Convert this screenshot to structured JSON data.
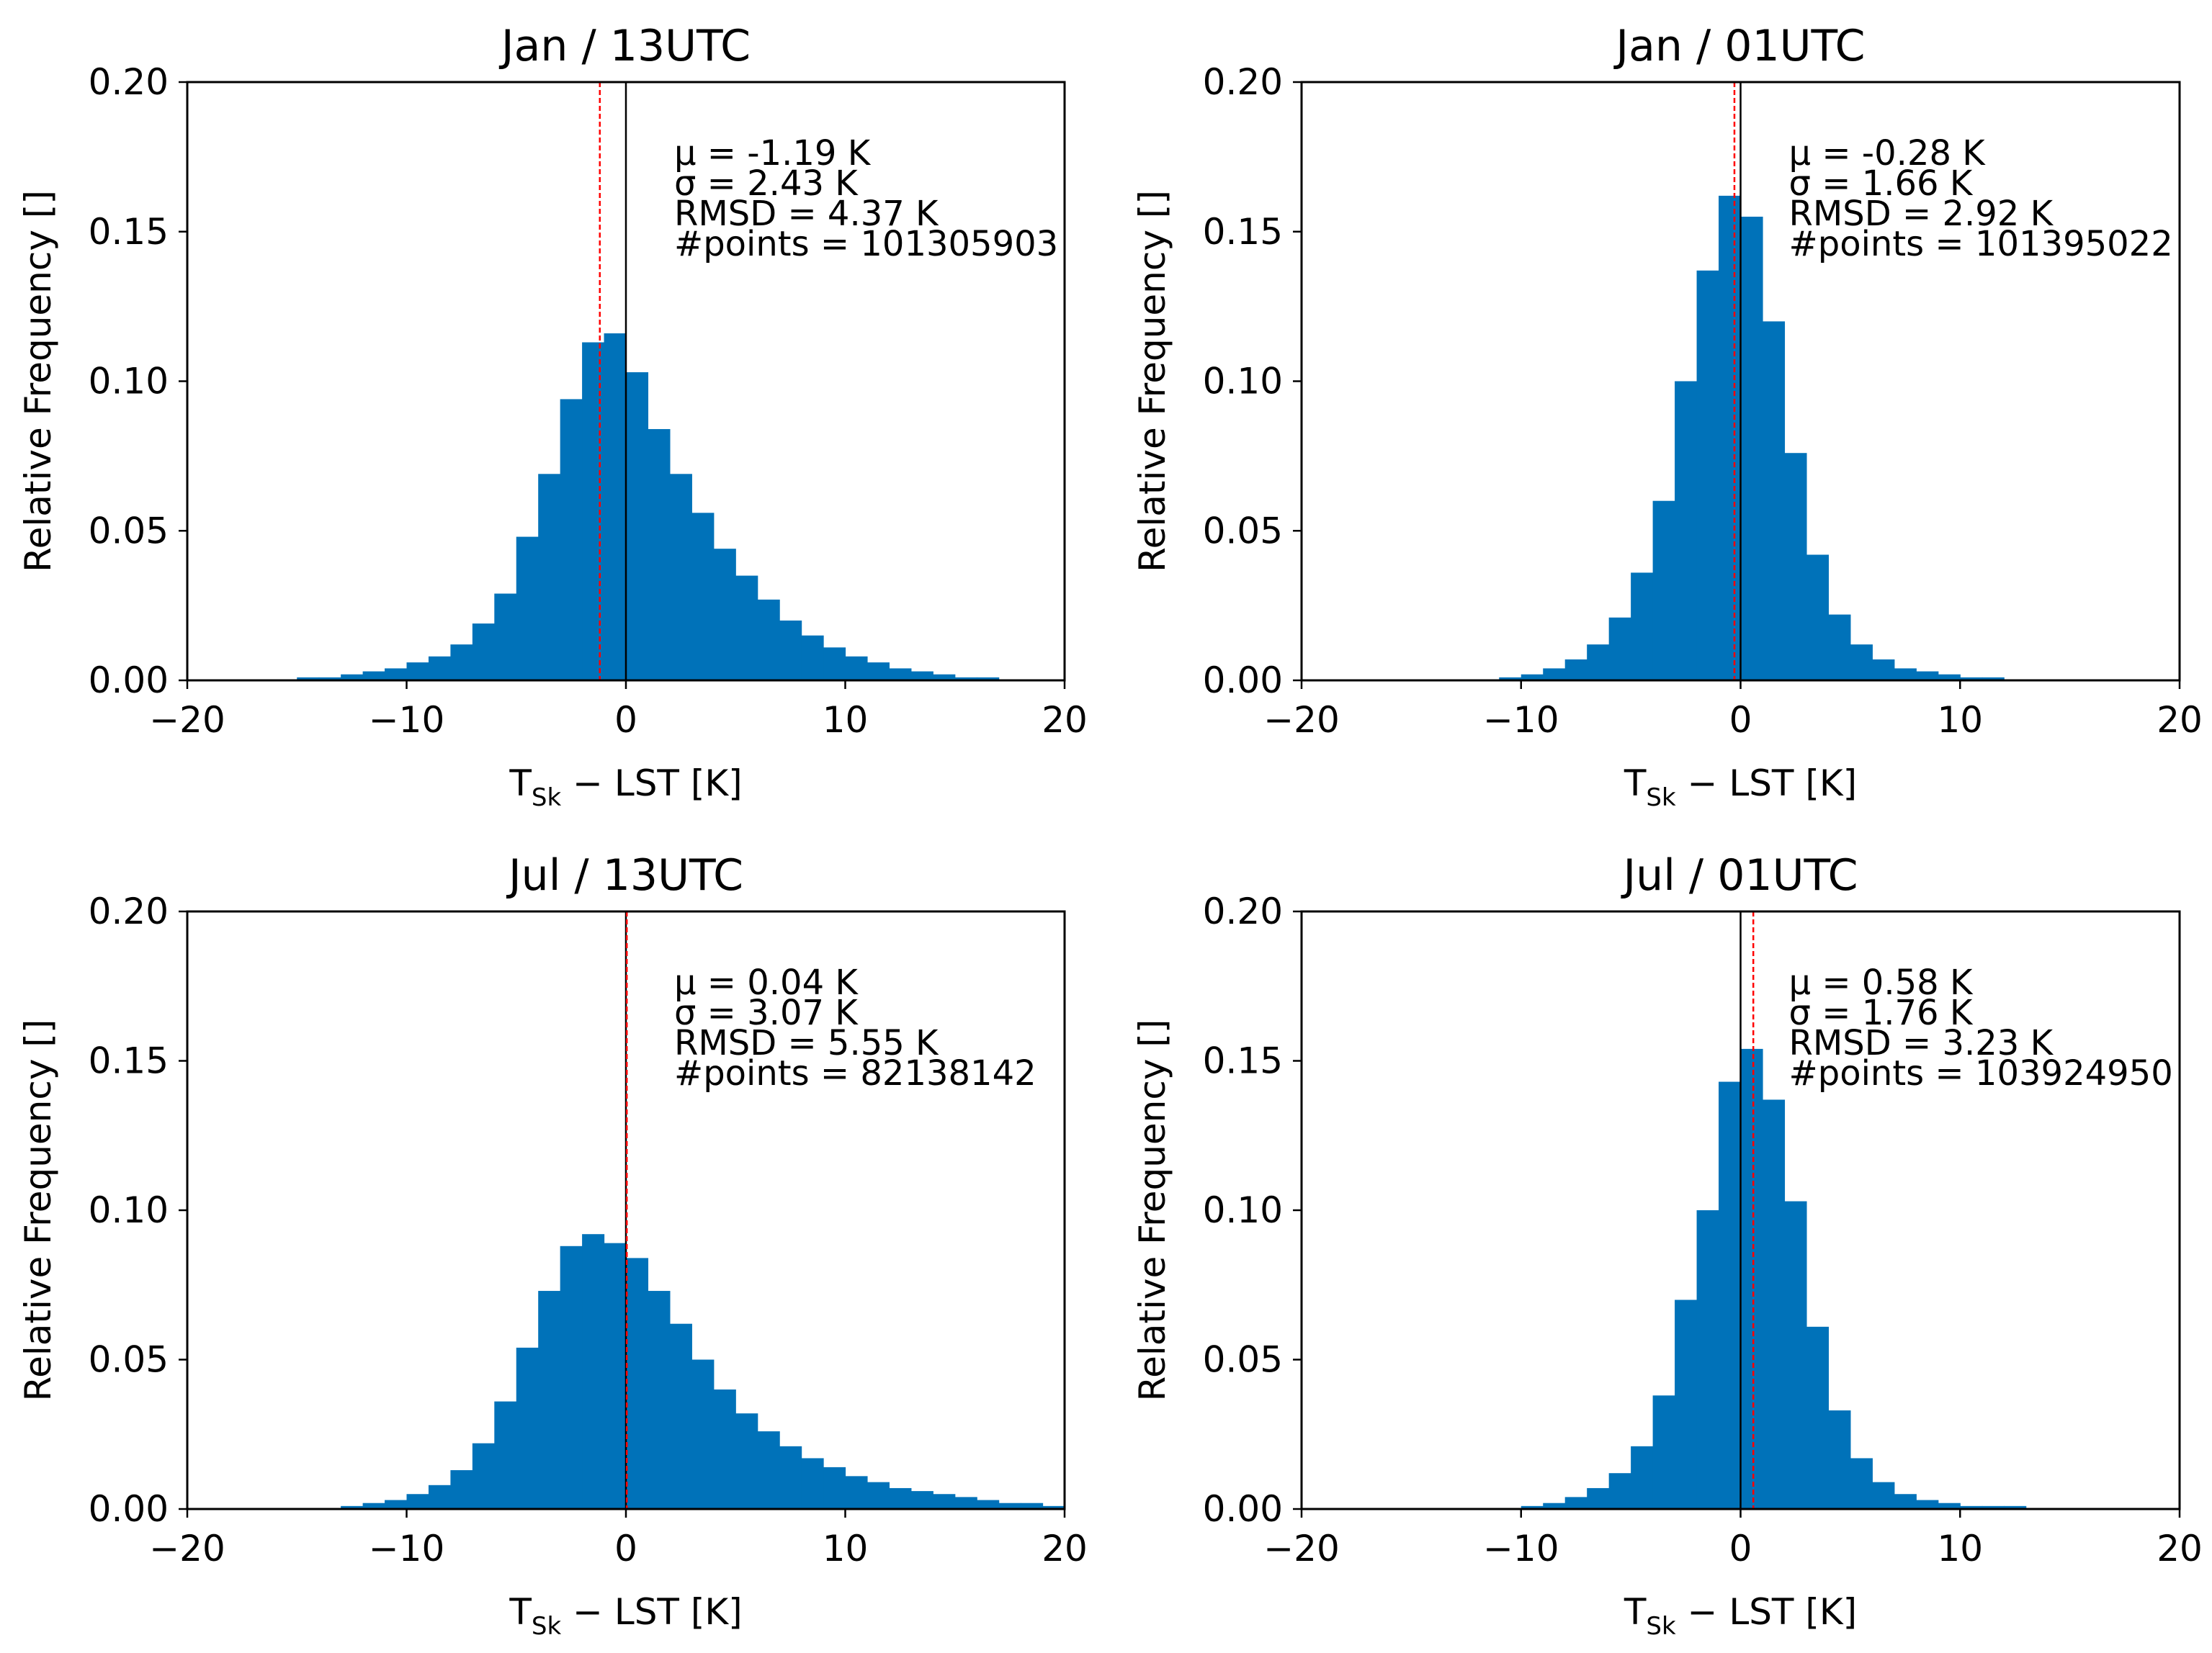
{
  "figure": {
    "xlabel_main": "T",
    "xlabel_sub": "Sk",
    "xlabel_rest": " − LST [K]",
    "ylabel": "Relative Frequency []"
  },
  "chart_data": [
    {
      "type": "bar",
      "title": "Jan / 13UTC",
      "xlim": [
        -20,
        20
      ],
      "ylim": [
        0,
        0.2
      ],
      "xticks": [
        "−20",
        "−10",
        "0",
        "10",
        "20"
      ],
      "yticks": [
        "0.00",
        "0.05",
        "0.10",
        "0.15",
        "0.20"
      ],
      "bin_start": -20,
      "bin_width": 1,
      "values": [
        0,
        0,
        0,
        0,
        0,
        0.001,
        0.001,
        0.002,
        0.003,
        0.004,
        0.006,
        0.008,
        0.012,
        0.019,
        0.029,
        0.048,
        0.069,
        0.094,
        0.113,
        0.116,
        0.103,
        0.084,
        0.069,
        0.056,
        0.044,
        0.035,
        0.027,
        0.02,
        0.015,
        0.011,
        0.008,
        0.006,
        0.004,
        0.003,
        0.002,
        0.001,
        0.001,
        0,
        0,
        0
      ],
      "mean": -1.19,
      "stats": [
        "μ =  -1.19 K",
        "σ = 2.43 K",
        "RMSD = 4.37 K",
        "#points = 101305903"
      ]
    },
    {
      "type": "bar",
      "title": "Jan / 01UTC",
      "xlim": [
        -20,
        20
      ],
      "ylim": [
        0,
        0.2
      ],
      "xticks": [
        "−20",
        "−10",
        "0",
        "10",
        "20"
      ],
      "yticks": [
        "0.00",
        "0.05",
        "0.10",
        "0.15",
        "0.20"
      ],
      "bin_start": -20,
      "bin_width": 1,
      "values": [
        0,
        0,
        0,
        0,
        0,
        0,
        0,
        0,
        0,
        0.001,
        0.002,
        0.004,
        0.007,
        0.012,
        0.021,
        0.036,
        0.06,
        0.1,
        0.137,
        0.162,
        0.155,
        0.12,
        0.076,
        0.042,
        0.022,
        0.012,
        0.007,
        0.004,
        0.003,
        0.002,
        0.001,
        0.001,
        0,
        0,
        0,
        0,
        0,
        0,
        0,
        0
      ],
      "mean": -0.28,
      "stats": [
        "μ =  -0.28 K",
        "σ = 1.66 K",
        "RMSD = 2.92 K",
        "#points = 101395022"
      ]
    },
    {
      "type": "bar",
      "title": "Jul / 13UTC",
      "xlim": [
        -20,
        20
      ],
      "ylim": [
        0,
        0.2
      ],
      "xticks": [
        "−20",
        "−10",
        "0",
        "10",
        "20"
      ],
      "yticks": [
        "0.00",
        "0.05",
        "0.10",
        "0.15",
        "0.20"
      ],
      "bin_start": -20,
      "bin_width": 1,
      "values": [
        0,
        0,
        0,
        0,
        0,
        0,
        0,
        0.001,
        0.002,
        0.003,
        0.005,
        0.008,
        0.013,
        0.022,
        0.036,
        0.054,
        0.073,
        0.088,
        0.092,
        0.089,
        0.084,
        0.073,
        0.062,
        0.05,
        0.04,
        0.032,
        0.026,
        0.021,
        0.017,
        0.014,
        0.011,
        0.009,
        0.007,
        0.006,
        0.005,
        0.004,
        0.003,
        0.002,
        0.002,
        0.001
      ],
      "mean": 0.04,
      "stats": [
        "μ =  0.04 K",
        "σ = 3.07 K",
        "RMSD = 5.55 K",
        "#points = 82138142"
      ]
    },
    {
      "type": "bar",
      "title": "Jul / 01UTC",
      "xlim": [
        -20,
        20
      ],
      "ylim": [
        0,
        0.2
      ],
      "xticks": [
        "−20",
        "−10",
        "0",
        "10",
        "20"
      ],
      "yticks": [
        "0.00",
        "0.05",
        "0.10",
        "0.15",
        "0.20"
      ],
      "bin_start": -20,
      "bin_width": 1,
      "values": [
        0,
        0,
        0,
        0,
        0,
        0,
        0,
        0,
        0,
        0,
        0.001,
        0.002,
        0.004,
        0.007,
        0.012,
        0.021,
        0.038,
        0.07,
        0.1,
        0.143,
        0.154,
        0.137,
        0.103,
        0.061,
        0.033,
        0.017,
        0.009,
        0.005,
        0.003,
        0.002,
        0.001,
        0.001,
        0.001,
        0,
        0,
        0,
        0,
        0,
        0,
        0
      ],
      "mean": 0.58,
      "stats": [
        "μ =  0.58 K",
        "σ = 1.76 K",
        "RMSD = 3.23 K",
        "#points = 103924950"
      ]
    }
  ]
}
